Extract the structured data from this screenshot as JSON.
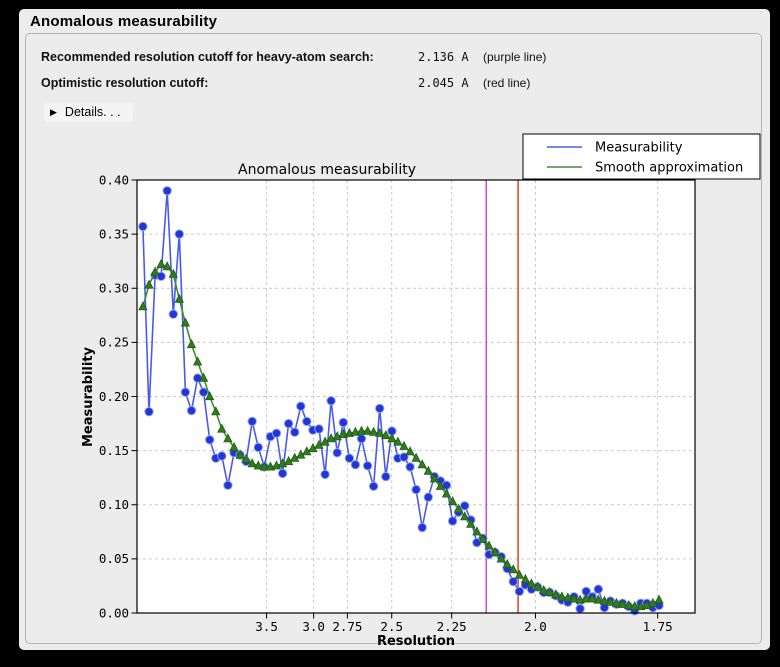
{
  "header": {
    "title": "Anomalous measurability"
  },
  "info": {
    "rows": [
      {
        "label": "Recommended resolution cutoff for heavy-atom search:",
        "value": "2.136 A",
        "note": "(purple line)"
      },
      {
        "label": "Optimistic resolution cutoff:",
        "value": "2.045 A",
        "note": "(red line)"
      }
    ],
    "details": {
      "icon": "▶",
      "label": "Details. . ."
    }
  },
  "colors": {
    "frame_bg": "#000000",
    "panel_bg": "#ececec",
    "plot_bg": "#ffffff",
    "grid": "#c9c9c9",
    "axis": "#000000"
  },
  "chart_data": {
    "type": "line",
    "title": "Anomalous measurability",
    "xlabel": "Resolution",
    "ylabel": "Measurability",
    "grid": true,
    "x_axis": {
      "unit": "Angstrom",
      "scale": "inverse_d_squared",
      "tick_labels": [
        "3.5",
        "3.0",
        "2.75",
        "2.5",
        "2.25",
        "2.0",
        "1.75"
      ],
      "domain_inv_d2": [
        0.0005,
        0.3499
      ]
    },
    "y_axis": {
      "min": 0.0,
      "max": 0.4,
      "tick_labels": [
        "0.00",
        "0.05",
        "0.10",
        "0.15",
        "0.20",
        "0.25",
        "0.30",
        "0.35",
        "0.40"
      ]
    },
    "x_inv_d2_start": 0.0042,
    "x_inv_d2_step": 0.003802,
    "legend": {
      "position": "top-right",
      "entries": [
        {
          "label": "Measurability",
          "color": "#4a5ae8"
        },
        {
          "label": "Smooth approximation",
          "color": "#3f8f2f"
        }
      ]
    },
    "series": [
      {
        "name": "Measurability",
        "line_color": "#4a5ae8",
        "marker": "circle",
        "marker_fill": "#2136d4",
        "marker_edge": "#93a1f2",
        "values": [
          0.357,
          0.186,
          0.312,
          0.311,
          0.39,
          0.276,
          0.35,
          0.204,
          0.187,
          0.217,
          0.204,
          0.16,
          0.143,
          0.145,
          0.118,
          0.148,
          0.146,
          0.14,
          0.177,
          0.153,
          0.135,
          0.163,
          0.166,
          0.129,
          0.175,
          0.167,
          0.191,
          0.177,
          0.169,
          0.17,
          0.128,
          0.196,
          0.148,
          0.176,
          0.143,
          0.137,
          0.161,
          0.136,
          0.117,
          0.189,
          0.126,
          0.168,
          0.143,
          0.144,
          0.135,
          0.114,
          0.079,
          0.107,
          0.126,
          0.122,
          0.118,
          0.085,
          0.093,
          0.099,
          0.086,
          0.065,
          0.069,
          0.054,
          0.056,
          0.052,
          0.041,
          0.029,
          0.02,
          0.026,
          0.022,
          0.024,
          0.019,
          0.019,
          0.016,
          0.012,
          0.01,
          0.015,
          0.004,
          0.02,
          0.015,
          0.022,
          0.005,
          0.011,
          0.008,
          0.009,
          0.006,
          0.002,
          0.009,
          0.009,
          0.005,
          0.007
        ]
      },
      {
        "name": "Smooth approximation",
        "line_color": "#3f8f2f",
        "marker": "triangle-up",
        "marker_fill": "#2e7d1f",
        "marker_edge": "#245c14",
        "values": [
          0.283,
          0.303,
          0.315,
          0.322,
          0.32,
          0.313,
          0.29,
          0.268,
          0.248,
          0.232,
          0.217,
          0.2,
          0.186,
          0.17,
          0.161,
          0.153,
          0.146,
          0.142,
          0.138,
          0.136,
          0.135,
          0.135,
          0.136,
          0.138,
          0.14,
          0.143,
          0.146,
          0.149,
          0.152,
          0.155,
          0.158,
          0.161,
          0.163,
          0.165,
          0.166,
          0.167,
          0.168,
          0.168,
          0.167,
          0.166,
          0.164,
          0.161,
          0.158,
          0.154,
          0.149,
          0.143,
          0.137,
          0.131,
          0.124,
          0.117,
          0.11,
          0.103,
          0.096,
          0.089,
          0.082,
          0.075,
          0.068,
          0.062,
          0.056,
          0.05,
          0.045,
          0.04,
          0.035,
          0.031,
          0.027,
          0.024,
          0.021,
          0.019,
          0.017,
          0.015,
          0.014,
          0.013,
          0.012,
          0.013,
          0.013,
          0.012,
          0.011,
          0.01,
          0.009,
          0.008,
          0.007,
          0.006,
          0.006,
          0.007,
          0.009,
          0.012
        ]
      }
    ],
    "vlines": [
      {
        "name": "recommended-cutoff-line",
        "resolution": 2.136,
        "color": "#cf3fcf",
        "note": "purple line"
      },
      {
        "name": "optimistic-cutoff-line",
        "resolution": 2.045,
        "color": "#d23910",
        "note": "red line"
      }
    ]
  }
}
